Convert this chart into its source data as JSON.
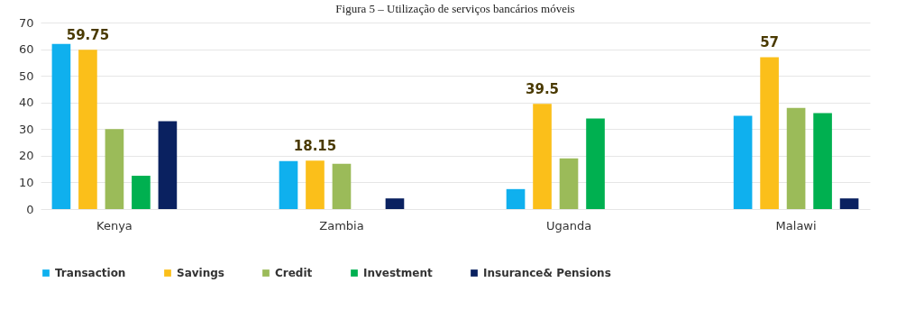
{
  "chart_data": {
    "type": "bar",
    "title": "Figura 5 – Utilização de serviços bancários móveis",
    "categories": [
      "Kenya",
      "Zambia",
      "Uganda",
      "Malawi"
    ],
    "series": [
      {
        "name": "Transaction",
        "color": "#0fb0ee",
        "values": [
          62,
          18,
          7.5,
          35
        ]
      },
      {
        "name": "Savings",
        "color": "#fbbf1a",
        "values": [
          59.75,
          18.15,
          39.5,
          57
        ],
        "value_labels": [
          "59.75",
          "18.15",
          "39.5",
          "57"
        ]
      },
      {
        "name": "Credit",
        "color": "#9bbb59",
        "values": [
          30,
          17,
          19,
          38
        ]
      },
      {
        "name": "Investment",
        "color": "#00b050",
        "values": [
          12.5,
          null,
          34,
          36
        ]
      },
      {
        "name": "Insurance& Pensions",
        "color": "#0a2160",
        "values": [
          33,
          4,
          null,
          4
        ]
      }
    ],
    "ylim": [
      0,
      70
    ],
    "yticks": [
      0,
      10,
      20,
      30,
      40,
      50,
      60,
      70
    ],
    "grid": "y",
    "legend": "bottom"
  }
}
